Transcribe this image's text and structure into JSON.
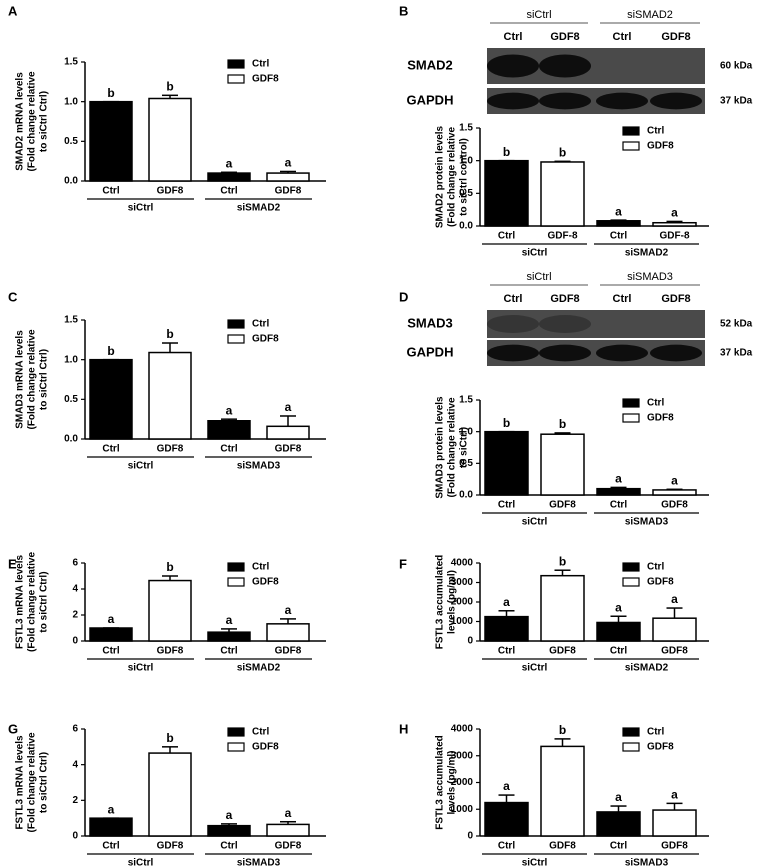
{
  "chart_data": [
    {
      "type": "bar",
      "panel": "A",
      "ylabel": [
        "SMAD2 mRNA levels",
        "(Fold change relative",
        "to siCtrl Ctrl)"
      ],
      "groups": [
        "siCtrl",
        "siSMAD2"
      ],
      "bar_labels": [
        "Ctrl",
        "GDF8",
        "Ctrl",
        "GDF8"
      ],
      "series": [
        {
          "name": "Ctrl",
          "color": "#000000",
          "values": [
            1.0,
            0.1
          ],
          "errors": [
            0,
            0.01
          ],
          "letters": [
            "b",
            "a"
          ]
        },
        {
          "name": "GDF8",
          "color": "#ffffff",
          "values": [
            1.04,
            0.1
          ],
          "errors": [
            0.04,
            0.02
          ],
          "letters": [
            "b",
            "a"
          ]
        }
      ],
      "ylim": [
        0,
        1.5
      ],
      "yticks": [
        {
          "value": 0,
          "label": "0.0"
        },
        {
          "value": 0.5,
          "label": "0.5"
        },
        {
          "value": 1,
          "label": "1.0"
        },
        {
          "value": 1.5,
          "label": "1.5"
        }
      ]
    },
    {
      "type": "bar",
      "ylabel": [
        "SMAD2 protein levels",
        "(Fold change relative",
        "to siCtrl control)"
      ],
      "groups": [
        "siCtrl",
        "siSMAD2"
      ],
      "bar_labels": [
        "Ctrl",
        "GDF-8",
        "Ctrl",
        "GDF-8"
      ],
      "series": [
        {
          "name": "Ctrl",
          "color": "#000000",
          "values": [
            1.0,
            0.08
          ],
          "errors": [
            0,
            0.01
          ],
          "letters": [
            "b",
            "a"
          ]
        },
        {
          "name": "GDF8",
          "color": "#ffffff",
          "values": [
            0.98,
            0.05
          ],
          "errors": [
            0.01,
            0.02
          ],
          "letters": [
            "b",
            "a"
          ]
        }
      ],
      "ylim": [
        0,
        1.5
      ],
      "yticks": [
        {
          "value": 0,
          "label": "0.0"
        },
        {
          "value": 0.5,
          "label": "0.5"
        },
        {
          "value": 1,
          "label": "1.0"
        },
        {
          "value": 1.5,
          "label": "1.5"
        }
      ]
    },
    {
      "type": "bar",
      "panel": "C",
      "ylabel": [
        "SMAD3 mRNA levels",
        "(Fold change relative",
        "to siCtrl Ctrl)"
      ],
      "groups": [
        "siCtrl",
        "siSMAD3"
      ],
      "bar_labels": [
        "Ctrl",
        "GDF8",
        "Ctrl",
        "GDF8"
      ],
      "series": [
        {
          "name": "Ctrl",
          "color": "#000000",
          "values": [
            1.0,
            0.23
          ],
          "errors": [
            0,
            0.02
          ],
          "letters": [
            "b",
            "a"
          ]
        },
        {
          "name": "GDF8",
          "color": "#ffffff",
          "values": [
            1.09,
            0.16
          ],
          "errors": [
            0.12,
            0.13
          ],
          "letters": [
            "b",
            "a"
          ]
        }
      ],
      "ylim": [
        0,
        1.5
      ],
      "yticks": [
        {
          "value": 0,
          "label": "0.0"
        },
        {
          "value": 0.5,
          "label": "0.5"
        },
        {
          "value": 1,
          "label": "1.0"
        },
        {
          "value": 1.5,
          "label": "1.5"
        }
      ]
    },
    {
      "type": "bar",
      "ylabel": [
        "SMAD3 protein levels",
        "(Fold change relative",
        "to siCtrl)"
      ],
      "groups": [
        "siCtrl",
        "siSMAD3"
      ],
      "bar_labels": [
        "Ctrl",
        "GDF8",
        "Ctrl",
        "GDF8"
      ],
      "series": [
        {
          "name": "Ctrl",
          "color": "#000000",
          "values": [
            1.0,
            0.1
          ],
          "errors": [
            0,
            0.02
          ],
          "letters": [
            "b",
            "a"
          ]
        },
        {
          "name": "GDF8",
          "color": "#ffffff",
          "values": [
            0.96,
            0.08
          ],
          "errors": [
            0.02,
            0.01
          ],
          "letters": [
            "b",
            "a"
          ]
        }
      ],
      "ylim": [
        0,
        1.5
      ],
      "yticks": [
        {
          "value": 0,
          "label": "0.0"
        },
        {
          "value": 0.5,
          "label": "0.5"
        },
        {
          "value": 1,
          "label": "1.0"
        },
        {
          "value": 1.5,
          "label": "1.5"
        }
      ]
    },
    {
      "type": "bar",
      "panel": "E",
      "ylabel": [
        "FSTL3 mRNA levels",
        "(Fold change relative",
        "to siCtrl Ctrl)"
      ],
      "groups": [
        "siCtrl",
        "siSMAD2"
      ],
      "bar_labels": [
        "Ctrl",
        "GDF8",
        "Ctrl",
        "GDF8"
      ],
      "series": [
        {
          "name": "Ctrl",
          "color": "#000000",
          "values": [
            1.0,
            0.68
          ],
          "errors": [
            0,
            0.25
          ],
          "letters": [
            "a",
            "a"
          ]
        },
        {
          "name": "GDF8",
          "color": "#ffffff",
          "values": [
            4.65,
            1.32
          ],
          "errors": [
            0.35,
            0.38
          ],
          "letters": [
            "b",
            "a"
          ]
        }
      ],
      "ylim": [
        0,
        6
      ],
      "yticks": [
        0,
        2,
        4,
        6
      ]
    },
    {
      "type": "bar",
      "panel": "F",
      "ylabel": [
        "FSTL3 accumulated",
        "levels (pg/ml)"
      ],
      "groups": [
        "siCtrl",
        "siSMAD2"
      ],
      "bar_labels": [
        "Ctrl",
        "GDF8",
        "Ctrl",
        "GDF8"
      ],
      "series": [
        {
          "name": "Ctrl",
          "color": "#000000",
          "values": [
            1250,
            950
          ],
          "errors": [
            300,
            320
          ],
          "letters": [
            "a",
            "a"
          ]
        },
        {
          "name": "GDF8",
          "color": "#ffffff",
          "values": [
            3350,
            1170
          ],
          "errors": [
            280,
            520
          ],
          "letters": [
            "b",
            "a"
          ]
        }
      ],
      "ylim": [
        0,
        4000
      ],
      "yticks": [
        0,
        1000,
        2000,
        3000,
        4000
      ]
    },
    {
      "type": "bar",
      "panel": "G",
      "ylabel": [
        "FSTL3 mRNA levels",
        "(Fold change relative",
        "to siCtrl Ctrl)"
      ],
      "groups": [
        "siCtrl",
        "siSMAD3"
      ],
      "bar_labels": [
        "Ctrl",
        "GDF8",
        "Ctrl",
        "GDF8"
      ],
      "series": [
        {
          "name": "Ctrl",
          "color": "#000000",
          "values": [
            1.0,
            0.58
          ],
          "errors": [
            0,
            0.1
          ],
          "letters": [
            "a",
            "a"
          ]
        },
        {
          "name": "GDF8",
          "color": "#ffffff",
          "values": [
            4.65,
            0.65
          ],
          "errors": [
            0.35,
            0.15
          ],
          "letters": [
            "b",
            "a"
          ]
        }
      ],
      "ylim": [
        0,
        6
      ],
      "yticks": [
        0,
        2,
        4,
        6
      ]
    },
    {
      "type": "bar",
      "panel": "H",
      "ylabel": [
        "FSTL3 accumulated",
        "levels (pg/ml)"
      ],
      "groups": [
        "siCtrl",
        "siSMAD3"
      ],
      "bar_labels": [
        "Ctrl",
        "GDF8",
        "Ctrl",
        "GDF8"
      ],
      "series": [
        {
          "name": "Ctrl",
          "color": "#000000",
          "values": [
            1250,
            900
          ],
          "errors": [
            280,
            220
          ],
          "letters": [
            "a",
            "a"
          ]
        },
        {
          "name": "GDF8",
          "color": "#ffffff",
          "values": [
            3350,
            970
          ],
          "errors": [
            280,
            250
          ],
          "letters": [
            "b",
            "a"
          ]
        }
      ],
      "ylim": [
        0,
        4000
      ],
      "yticks": [
        0,
        1000,
        2000,
        3000,
        4000
      ]
    }
  ],
  "blots": [
    {
      "panel": "B",
      "groups": [
        "siCtrl",
        "siSMAD2"
      ],
      "lanes": [
        "Ctrl",
        "GDF8",
        "Ctrl",
        "GDF8"
      ],
      "rows": [
        {
          "protein": "SMAD2",
          "size": "60 kDa"
        },
        {
          "protein": "GAPDH",
          "size": "37 kDa"
        }
      ]
    },
    {
      "panel": "D",
      "groups": [
        "siCtrl",
        "siSMAD3"
      ],
      "lanes": [
        "Ctrl",
        "GDF8",
        "Ctrl",
        "GDF8"
      ],
      "rows": [
        {
          "protein": "SMAD3",
          "size": "52 kDa"
        },
        {
          "protein": "GAPDH",
          "size": "37 kDa"
        }
      ]
    }
  ]
}
